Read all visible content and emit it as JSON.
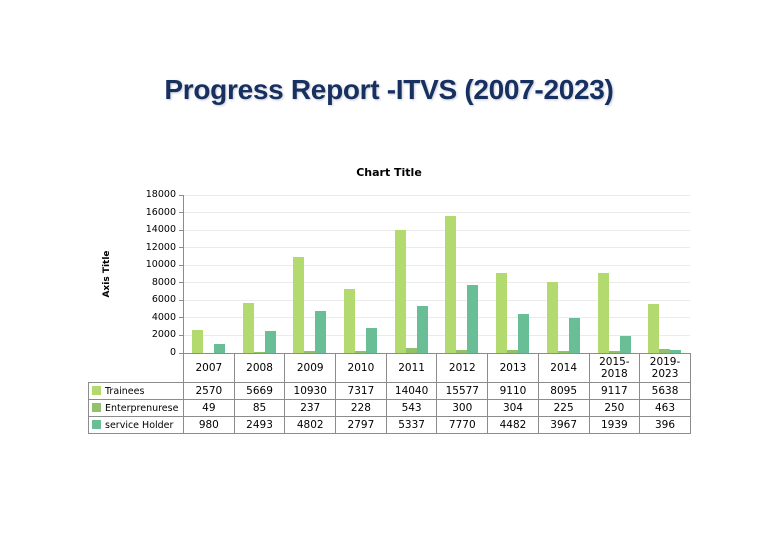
{
  "page": {
    "title": "Progress Report -ITVS (2007-2023)",
    "title_color": "#17305F",
    "background": "#ffffff"
  },
  "colors": {
    "grid": "#ebebeb",
    "axis": "#8c8c8c",
    "table_border": "#8c8c8c",
    "text": "#000000"
  },
  "chart_data": {
    "type": "bar",
    "title": "Chart Title",
    "xlabel": "",
    "ylabel": "Axis Title",
    "ylim": [
      0,
      18000
    ],
    "ytick_step": 2000,
    "grid": true,
    "legend_position": "data-table-left",
    "data_table": true,
    "categories": [
      "2007",
      "2008",
      "2009",
      "2010",
      "2011",
      "2012",
      "2013",
      "2014",
      "2015-2018",
      "2019-2023"
    ],
    "series": [
      {
        "name": "Trainees",
        "color": "#B2DA6E",
        "values": [
          2570,
          5669,
          10930,
          7317,
          14040,
          15577,
          9110,
          8095,
          9117,
          5638
        ]
      },
      {
        "name": "Enterprenurese",
        "color": "#93C16B",
        "values": [
          49,
          85,
          237,
          228,
          543,
          300,
          304,
          225,
          250,
          463
        ]
      },
      {
        "name": "service Holder",
        "color": "#69BE95",
        "values": [
          980,
          2493,
          4802,
          2797,
          5337,
          7770,
          4482,
          3967,
          1939,
          396
        ]
      }
    ]
  }
}
